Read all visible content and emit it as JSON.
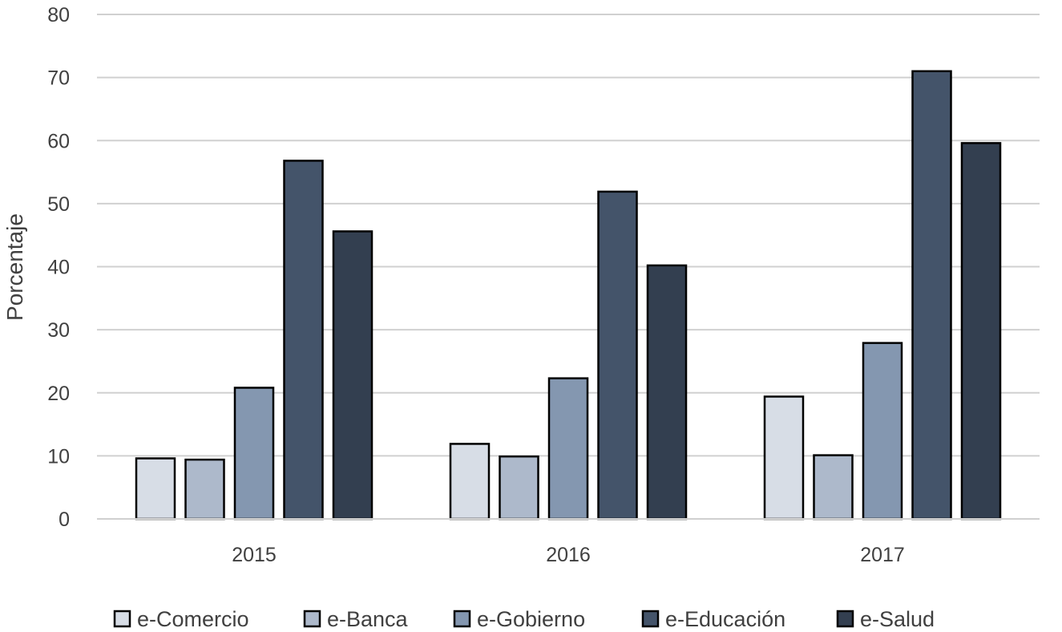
{
  "chart_data": {
    "type": "bar",
    "title": "",
    "xlabel": "",
    "ylabel": "Porcentaje",
    "ylim": [
      0,
      80
    ],
    "yticks": [
      0,
      10,
      20,
      30,
      40,
      50,
      60,
      70,
      80
    ],
    "grid": true,
    "legend_position": "bottom",
    "categories": [
      "2015",
      "2016",
      "2017"
    ],
    "series": [
      {
        "name": "e-Comercio",
        "color": "#d7dde6",
        "values": [
          9.6,
          11.9,
          19.4
        ]
      },
      {
        "name": "e-Banca",
        "color": "#adb9cb",
        "values": [
          9.4,
          9.9,
          10.1
        ]
      },
      {
        "name": "e-Gobierno",
        "color": "#8497b0",
        "values": [
          20.8,
          22.3,
          27.9
        ]
      },
      {
        "name": "e-Educación",
        "color": "#44546a",
        "values": [
          56.8,
          51.9,
          71.0
        ]
      },
      {
        "name": "e-Salud",
        "color": "#333f50",
        "values": [
          45.6,
          40.2,
          59.6
        ]
      }
    ]
  }
}
